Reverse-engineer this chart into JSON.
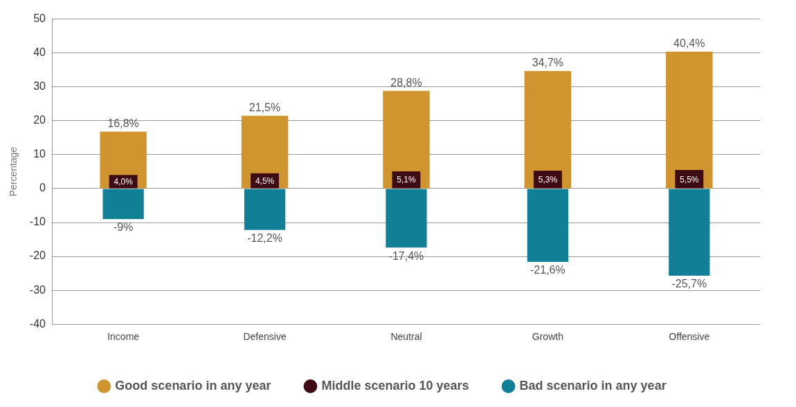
{
  "chart_data": {
    "type": "bar",
    "ylabel": "Percentage",
    "categories": [
      "Income",
      "Defensive",
      "Neutral",
      "Growth",
      "Offensive"
    ],
    "series": [
      {
        "name": "Good scenario in any year",
        "color": "#d0952f",
        "values": [
          16.8,
          21.5,
          28.8,
          34.7,
          40.4
        ],
        "value_labels": [
          "16,8%",
          "21,5%",
          "28,8%",
          "34,7%",
          "40,4%"
        ]
      },
      {
        "name": "Middle scenario 10 years",
        "color": "#3e0a14",
        "values": [
          4.0,
          4.5,
          5.1,
          5.3,
          5.5
        ],
        "value_labels": [
          "4,0%",
          "4,5%",
          "5,1%",
          "5,3%",
          "5,5%"
        ]
      },
      {
        "name": "Bad scenario in any year",
        "color": "#117f96",
        "values": [
          -9,
          -12.2,
          -17.4,
          -21.6,
          -25.7
        ],
        "value_labels": [
          "-9%",
          "-12,2%",
          "-17,4%",
          "-21,6%",
          "-25,7%"
        ]
      }
    ],
    "ylim": [
      -40,
      50
    ],
    "yticks": [
      -40,
      -30,
      -20,
      -10,
      0,
      10,
      20,
      30,
      40,
      50
    ],
    "grid": "y",
    "legend": "bottom"
  }
}
